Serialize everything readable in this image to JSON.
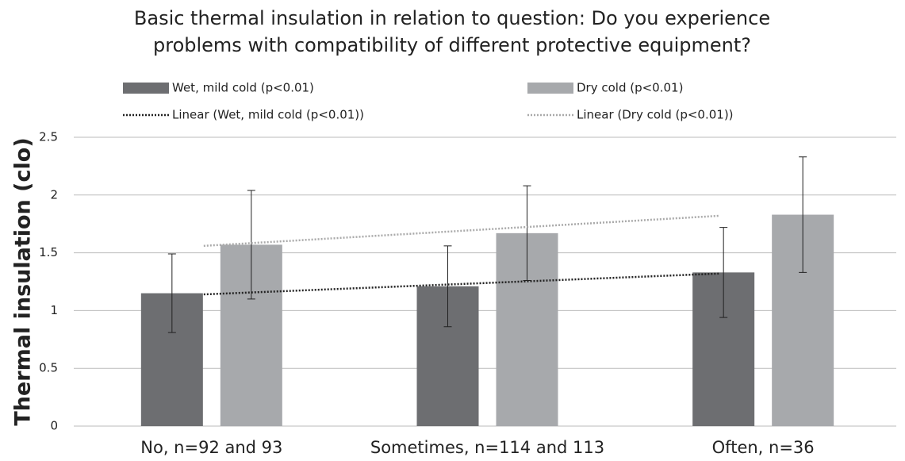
{
  "chart_data": {
    "type": "bar",
    "title": [
      "Basic thermal insulation in relation to question: Do you experience",
      "problems with compatibility of different protective equipment?"
    ],
    "y_label": "Thermal insulation (clo)",
    "categories": [
      "No, n=92 and 93",
      "Sometimes, n=114 and 113",
      "Often, n=36"
    ],
    "series": [
      {
        "name": "Wet, mild cold (p<0.01)",
        "color": "#6d6e71",
        "values": [
          1.15,
          1.21,
          1.33
        ],
        "errors": [
          0.34,
          0.35,
          0.39
        ]
      },
      {
        "name": "Dry cold (p<0.01)",
        "color": "#a7a9ac",
        "values": [
          1.57,
          1.67,
          1.83
        ],
        "errors": [
          0.47,
          0.41,
          0.5
        ]
      }
    ],
    "trendlines": [
      {
        "name": "Linear (Wet, mild cold (p<0.01))",
        "color": "#222222",
        "series": 0
      },
      {
        "name": "Linear (Dry cold (p<0.01))",
        "color": "#aaaaaa",
        "series": 1
      }
    ],
    "ylim": [
      0,
      2.5
    ],
    "yticks": [
      0,
      0.5,
      1,
      1.5,
      2,
      2.5
    ],
    "grid": true
  }
}
